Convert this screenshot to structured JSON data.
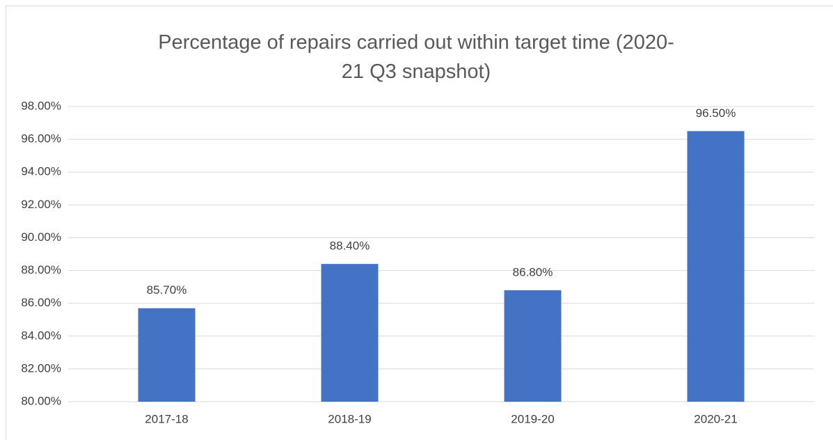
{
  "chart_data": {
    "type": "bar",
    "title": "Percentage of repairs carried out within target time (2020-21 Q3 snapshot)",
    "categories": [
      "2017-18",
      "2018-19",
      "2019-20",
      "2020-21"
    ],
    "values": [
      85.7,
      88.4,
      86.8,
      96.5
    ],
    "value_labels": [
      "85.70%",
      "88.40%",
      "86.80%",
      "96.50%"
    ],
    "color": "#4472c4",
    "ylim": [
      80,
      98
    ],
    "yticks": [
      {
        "value": 80,
        "label": "80.00%"
      },
      {
        "value": 82,
        "label": "82.00%"
      },
      {
        "value": 84,
        "label": "84.00%"
      },
      {
        "value": 86,
        "label": "86.00%"
      },
      {
        "value": 88,
        "label": "88.00%"
      },
      {
        "value": 90,
        "label": "90.00%"
      },
      {
        "value": 92,
        "label": "92.00%"
      },
      {
        "value": 94,
        "label": "94.00%"
      },
      {
        "value": 96,
        "label": "96.00%"
      },
      {
        "value": 98,
        "label": "98.00%"
      }
    ],
    "grid": true
  }
}
